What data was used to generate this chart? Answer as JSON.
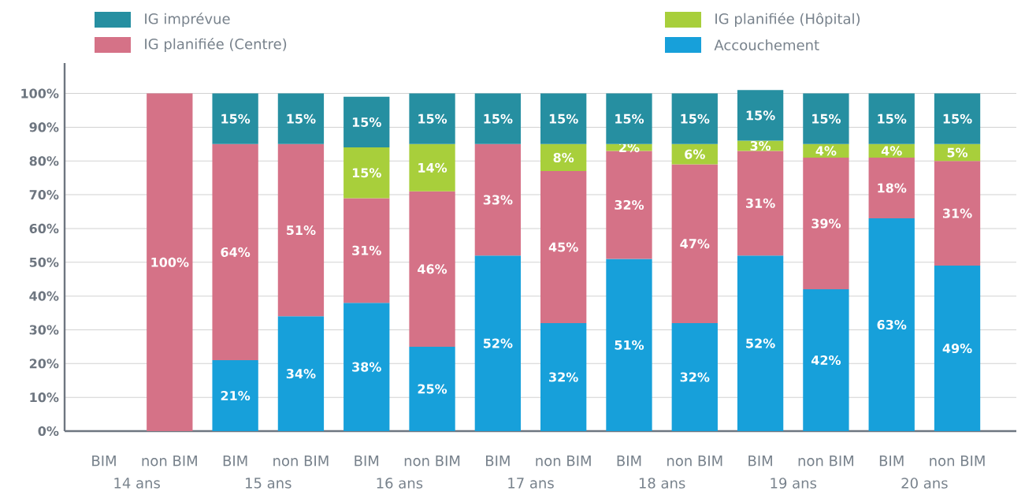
{
  "chart_data": {
    "type": "bar",
    "stacked": true,
    "grid": "y",
    "legend": "top",
    "categories": [
      "BIM",
      "non BIM",
      "BIM",
      "non BIM",
      "BIM",
      "non BIM",
      "BIM",
      "non BIM",
      "BIM",
      "non BIM",
      "BIM",
      "non BIM",
      "BIM",
      "non BIM"
    ],
    "ylim": [
      0,
      109
    ],
    "yticks": [
      {
        "value": 0,
        "label": "0%"
      },
      {
        "value": 10,
        "label": "10%"
      },
      {
        "value": 20,
        "label": "20%"
      },
      {
        "value": 30,
        "label": "30%"
      },
      {
        "value": 40,
        "label": "40%"
      },
      {
        "value": 50,
        "label": "50%"
      },
      {
        "value": 60,
        "label": "60%"
      },
      {
        "value": 70,
        "label": "70%"
      },
      {
        "value": 80,
        "label": "80%"
      },
      {
        "value": 90,
        "label": "90%"
      },
      {
        "value": 100,
        "label": "100%"
      }
    ],
    "series": [
      {
        "name": "Accouchement",
        "color": "#17a0da",
        "values": [
          null,
          null,
          21,
          34,
          38,
          25,
          52,
          32,
          51,
          32,
          52,
          42,
          63,
          49
        ],
        "value_labels": [
          null,
          null,
          "21%",
          "34%",
          "38%",
          "25%",
          "52%",
          "32%",
          "51%",
          "32%",
          "52%",
          "42%",
          "63%",
          "49%"
        ]
      },
      {
        "name": "IG planifiée (Centre)",
        "color": "#d57287",
        "values": [
          null,
          100,
          64,
          51,
          31,
          46,
          33,
          45,
          32,
          47,
          31,
          39,
          18,
          31
        ],
        "value_labels": [
          null,
          "100%",
          "64%",
          "51%",
          "31%",
          "46%",
          "33%",
          "45%",
          "32%",
          "47%",
          "31%",
          "39%",
          "18%",
          "31%"
        ]
      },
      {
        "name": "IG planifiée (Hôpital)",
        "color": "#a8cf3b",
        "values": [
          null,
          null,
          null,
          null,
          15,
          14,
          null,
          8,
          2,
          6,
          3,
          4,
          4,
          5
        ],
        "value_labels": [
          null,
          null,
          null,
          null,
          "15%",
          "14%",
          null,
          "8%",
          "2%",
          "6%",
          "3%",
          "4%",
          "4%",
          "5%"
        ]
      },
      {
        "name": "IG imprévue",
        "color": "#268fa1",
        "values": [
          null,
          null,
          15,
          15,
          15,
          15,
          15,
          15,
          15,
          15,
          15,
          15,
          15,
          15
        ],
        "value_labels": [
          null,
          null,
          "15%",
          "15%",
          "15%",
          "15%",
          "15%",
          "15%",
          "15%",
          "15%",
          "15%",
          "15%",
          "15%",
          "15%"
        ]
      }
    ],
    "annotations": [
      "14 ans",
      "15 ans",
      "16 ans",
      "17 ans",
      "18 ans",
      "19 ans",
      "20 ans"
    ]
  }
}
